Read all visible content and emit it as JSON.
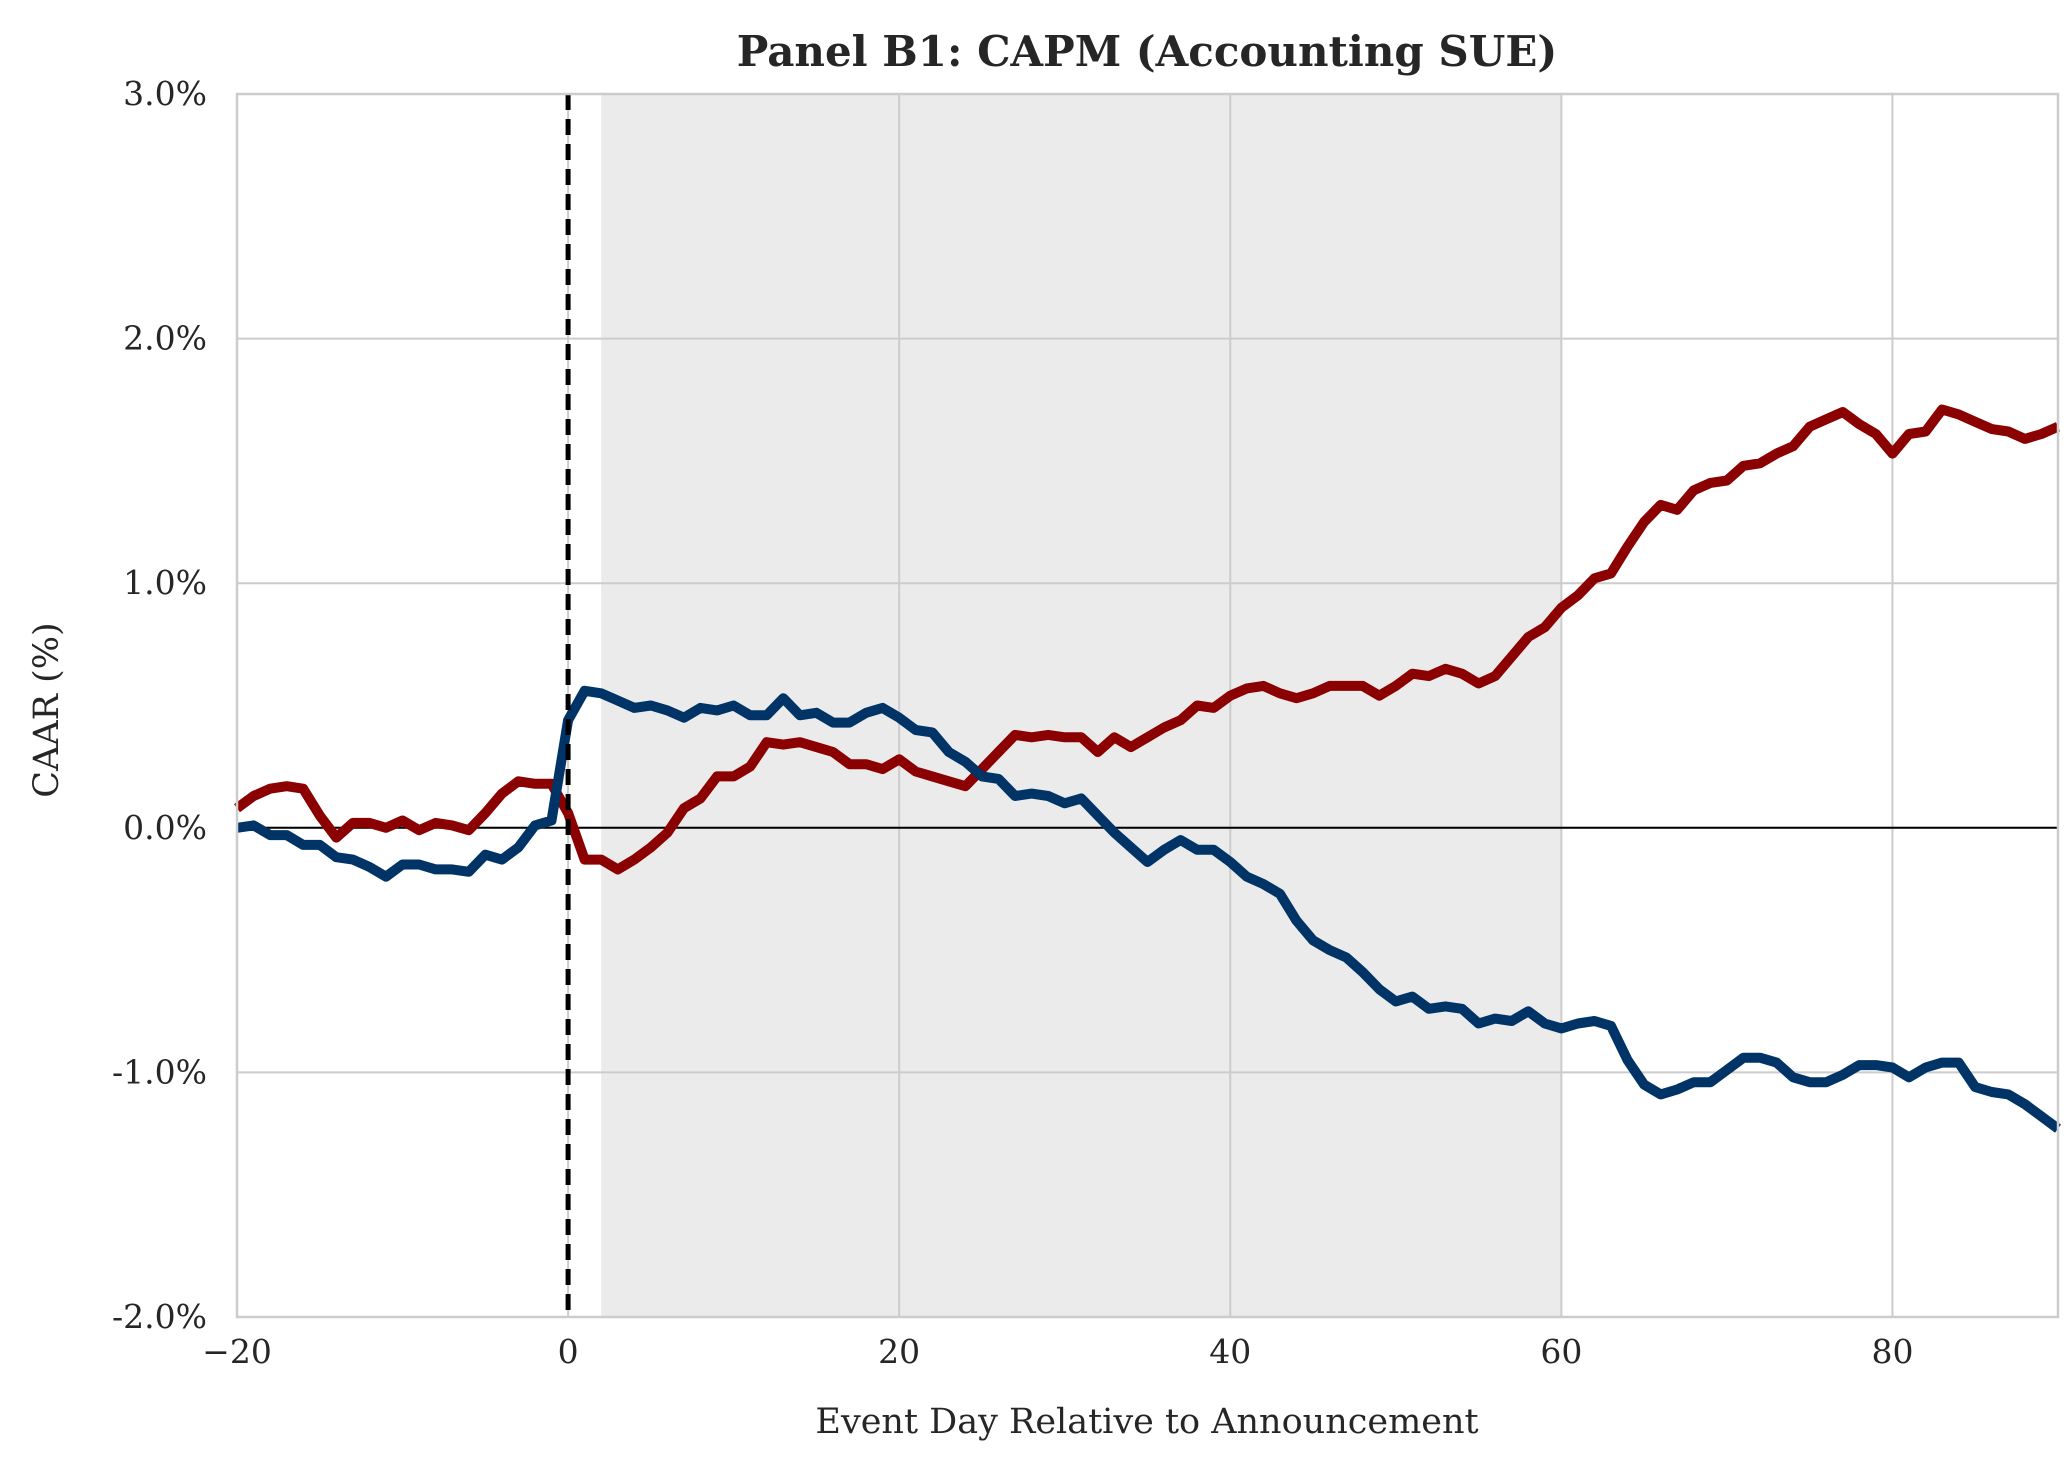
{
  "chart_data": {
    "type": "line",
    "title": "Panel B1: CAPM (Accounting SUE)",
    "xlabel": "Event Day Relative to Announcement",
    "ylabel": "CAAR (%)",
    "xlim": [
      -20,
      90
    ],
    "ylim": [
      -2.0,
      3.0
    ],
    "x_ticks": [
      -20,
      0,
      20,
      40,
      60,
      80
    ],
    "x_tick_labels": [
      "−20",
      "0",
      "20",
      "40",
      "60",
      "80"
    ],
    "y_ticks": [
      -2.0,
      -1.0,
      0.0,
      1.0,
      2.0,
      3.0
    ],
    "y_tick_labels": [
      "-2.0%",
      "-1.0%",
      "0.0%",
      "1.0%",
      "2.0%",
      "3.0%"
    ],
    "grid": true,
    "shaded_region": {
      "x_start": 2,
      "x_end": 60,
      "color": "#ebebeb"
    },
    "event_line": {
      "x": 0,
      "style": "dashed",
      "color": "#000000"
    },
    "zero_line": {
      "y": 0,
      "color": "#000000"
    },
    "series": [
      {
        "color": "#8b0000",
        "x": [
          -20,
          -19,
          -18,
          -17,
          -16,
          -15,
          -14,
          -13,
          -12,
          -11,
          -10,
          -9,
          -8,
          -7,
          -6,
          -5,
          -4,
          -3,
          -2,
          -1,
          0,
          1,
          2,
          3,
          4,
          5,
          6,
          7,
          8,
          9,
          10,
          11,
          12,
          13,
          14,
          15,
          16,
          17,
          18,
          19,
          20,
          21,
          22,
          23,
          24,
          25,
          26,
          27,
          28,
          29,
          30,
          31,
          32,
          33,
          34,
          35,
          36,
          37,
          38,
          39,
          40,
          41,
          42,
          43,
          44,
          45,
          46,
          47,
          48,
          49,
          50,
          51,
          52,
          53,
          54,
          55,
          56,
          57,
          58,
          59,
          60,
          61,
          62,
          63,
          64,
          65,
          66,
          67,
          68,
          69,
          70,
          71,
          72,
          73,
          74,
          75,
          76,
          77,
          78,
          79,
          80,
          81,
          82,
          83,
          84,
          85,
          86,
          87,
          88,
          89,
          90
        ],
        "values": [
          0.08,
          0.13,
          0.16,
          0.17,
          0.16,
          0.05,
          -0.04,
          0.02,
          0.02,
          0.0,
          0.03,
          -0.01,
          0.02,
          0.01,
          -0.01,
          0.06,
          0.14,
          0.19,
          0.18,
          0.18,
          0.06,
          -0.13,
          -0.13,
          -0.17,
          -0.13,
          -0.08,
          -0.02,
          0.08,
          0.12,
          0.21,
          0.21,
          0.25,
          0.35,
          0.34,
          0.35,
          0.33,
          0.31,
          0.26,
          0.26,
          0.24,
          0.28,
          0.23,
          0.21,
          0.19,
          0.17,
          0.24,
          0.31,
          0.38,
          0.37,
          0.38,
          0.37,
          0.37,
          0.31,
          0.37,
          0.33,
          0.37,
          0.41,
          0.44,
          0.5,
          0.49,
          0.54,
          0.57,
          0.58,
          0.55,
          0.53,
          0.55,
          0.58,
          0.58,
          0.58,
          0.54,
          0.58,
          0.63,
          0.62,
          0.65,
          0.63,
          0.59,
          0.62,
          0.7,
          0.78,
          0.82,
          0.9,
          0.95,
          1.02,
          1.04,
          1.15,
          1.25,
          1.32,
          1.3,
          1.38,
          1.41,
          1.42,
          1.48,
          1.49,
          1.53,
          1.56,
          1.64,
          1.67,
          1.7,
          1.65,
          1.61,
          1.53,
          1.61,
          1.62,
          1.71,
          1.69,
          1.66,
          1.63,
          1.62,
          1.59,
          1.61,
          1.64
        ]
      },
      {
        "color": "#003366",
        "x": [
          -20,
          -19,
          -18,
          -17,
          -16,
          -15,
          -14,
          -13,
          -12,
          -11,
          -10,
          -9,
          -8,
          -7,
          -6,
          -5,
          -4,
          -3,
          -2,
          -1,
          0,
          1,
          2,
          3,
          4,
          5,
          6,
          7,
          8,
          9,
          10,
          11,
          12,
          13,
          14,
          15,
          16,
          17,
          18,
          19,
          20,
          21,
          22,
          23,
          24,
          25,
          26,
          27,
          28,
          29,
          30,
          31,
          32,
          33,
          34,
          35,
          36,
          37,
          38,
          39,
          40,
          41,
          42,
          43,
          44,
          45,
          46,
          47,
          48,
          49,
          50,
          51,
          52,
          53,
          54,
          55,
          56,
          57,
          58,
          59,
          60,
          61,
          62,
          63,
          64,
          65,
          66,
          67,
          68,
          69,
          70,
          71,
          72,
          73,
          74,
          75,
          76,
          77,
          78,
          79,
          80,
          81,
          82,
          83,
          84,
          85,
          86,
          87,
          88,
          89,
          90
        ],
        "values": [
          0.0,
          0.01,
          -0.03,
          -0.03,
          -0.07,
          -0.07,
          -0.12,
          -0.13,
          -0.16,
          -0.2,
          -0.15,
          -0.15,
          -0.17,
          -0.17,
          -0.18,
          -0.11,
          -0.13,
          -0.08,
          0.01,
          0.03,
          0.44,
          0.56,
          0.55,
          0.52,
          0.49,
          0.5,
          0.48,
          0.45,
          0.49,
          0.48,
          0.5,
          0.46,
          0.46,
          0.53,
          0.46,
          0.47,
          0.43,
          0.43,
          0.47,
          0.49,
          0.45,
          0.4,
          0.39,
          0.31,
          0.27,
          0.21,
          0.2,
          0.13,
          0.14,
          0.13,
          0.1,
          0.12,
          0.05,
          -0.02,
          -0.08,
          -0.14,
          -0.09,
          -0.05,
          -0.09,
          -0.09,
          -0.14,
          -0.2,
          -0.23,
          -0.27,
          -0.38,
          -0.46,
          -0.5,
          -0.53,
          -0.59,
          -0.66,
          -0.71,
          -0.69,
          -0.74,
          -0.73,
          -0.74,
          -0.8,
          -0.78,
          -0.79,
          -0.75,
          -0.8,
          -0.82,
          -0.8,
          -0.79,
          -0.81,
          -0.95,
          -1.05,
          -1.09,
          -1.07,
          -1.04,
          -1.04,
          -0.99,
          -0.94,
          -0.94,
          -0.96,
          -1.02,
          -1.04,
          -1.04,
          -1.01,
          -0.97,
          -0.97,
          -0.98,
          -1.02,
          -0.98,
          -0.96,
          -0.96,
          -1.06,
          -1.08,
          -1.09,
          -1.13,
          -1.18,
          -1.23
        ]
      }
    ]
  }
}
